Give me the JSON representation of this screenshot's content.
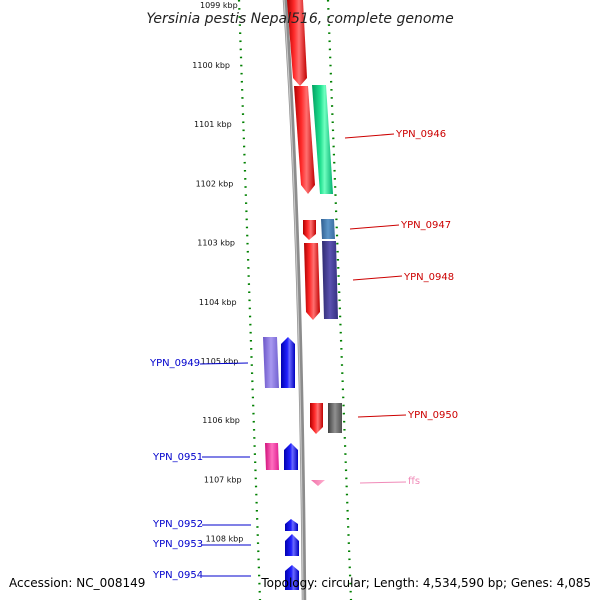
{
  "title": "Yersinia pestis Nepal516, complete genome",
  "top_clipped_label": "1099 kbp",
  "axis": {
    "tick_unit": "kbp",
    "ticks": [
      {
        "kbp": 1100,
        "label": "1100 kbp"
      },
      {
        "kbp": 1101,
        "label": "1101 kbp"
      },
      {
        "kbp": 1102,
        "label": "1102 kbp"
      },
      {
        "kbp": 1103,
        "label": "1103 kbp"
      },
      {
        "kbp": 1104,
        "label": "1104 kbp"
      },
      {
        "kbp": 1105,
        "label": "1105 kbp"
      },
      {
        "kbp": 1106,
        "label": "1106 kbp"
      },
      {
        "kbp": 1107,
        "label": "1107 kbp"
      },
      {
        "kbp": 1108,
        "label": "1108 kbp"
      }
    ]
  },
  "gene_labels": {
    "right": [
      {
        "name": "YPN_0946",
        "color": "#cc0000"
      },
      {
        "name": "YPN_0947",
        "color": "#cc0000"
      },
      {
        "name": "YPN_0948",
        "color": "#cc0000"
      },
      {
        "name": "YPN_0950",
        "color": "#cc0000"
      },
      {
        "name": "ffs",
        "color": "#f08ab8"
      }
    ],
    "left": [
      {
        "name": "YPN_0949",
        "color": "#0000cc"
      },
      {
        "name": "YPN_0951",
        "color": "#0000cc"
      },
      {
        "name": "YPN_0952",
        "color": "#0000cc"
      },
      {
        "name": "YPN_0953",
        "color": "#0000cc"
      },
      {
        "name": "YPN_0954",
        "color": "#0000cc"
      }
    ]
  },
  "colors": {
    "forward_gene": "#ff0000",
    "reverse_gene": "#0000ff",
    "backbone": "#8c8c8c",
    "tick_dots": "#008000",
    "right_label": "#cc0000",
    "left_label": "#0000cc",
    "rna_feature": "#f08ab8"
  },
  "footer": {
    "accession": "Accession: NC_008149",
    "summary": "Topology: circular; Length: 4,534,590 bp; Genes: 4,085"
  }
}
